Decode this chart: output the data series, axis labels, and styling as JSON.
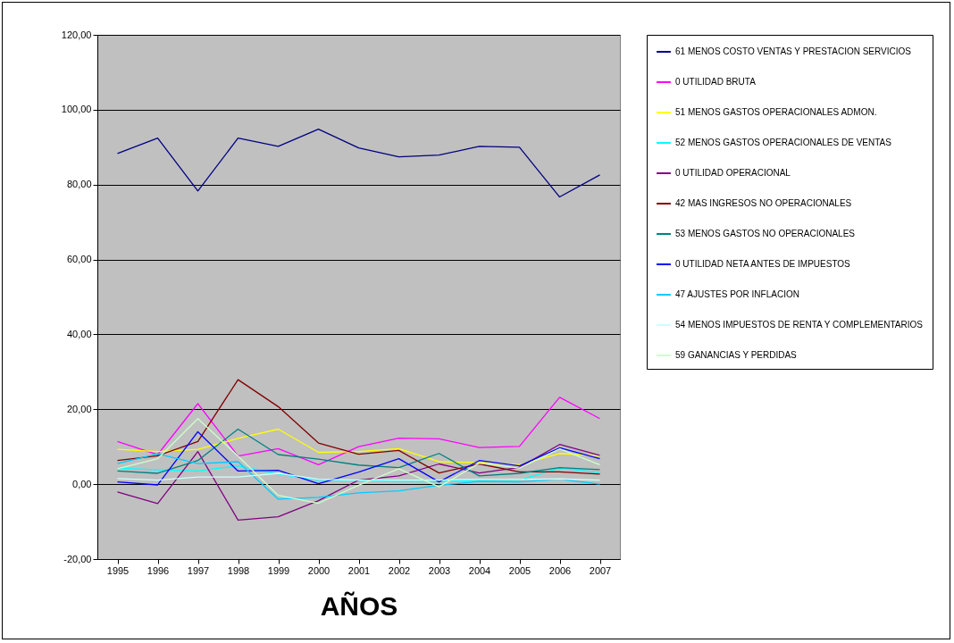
{
  "chart_data": {
    "type": "line",
    "xlabel": "AÑOS",
    "categories": [
      "1995",
      "1996",
      "1997",
      "1998",
      "1999",
      "2000",
      "2001",
      "2002",
      "2003",
      "2004",
      "2005",
      "2006",
      "2007"
    ],
    "ylim": [
      -20,
      120
    ],
    "yticks": [
      {
        "value": -20,
        "label": "-20,00"
      },
      {
        "value": 0,
        "label": "0,00"
      },
      {
        "value": 20,
        "label": "20,00"
      },
      {
        "value": 40,
        "label": "40,00"
      },
      {
        "value": 60,
        "label": "60,00"
      },
      {
        "value": 80,
        "label": "80,00"
      },
      {
        "value": 100,
        "label": "100,00"
      },
      {
        "value": 120,
        "label": "120,00"
      }
    ],
    "grid": "y",
    "legend": "right",
    "marker": "none",
    "series": [
      {
        "name": "61 MENOS COSTO VENTAS Y PRESTACION SERVICIOS",
        "color": "#000080",
        "values": [
          88.3,
          92.4,
          78.3,
          92.4,
          90.2,
          94.8,
          89.8,
          87.4,
          87.9,
          90.2,
          90.0,
          76.7,
          82.6
        ]
      },
      {
        "name": "0 UTILIDAD BRUTA",
        "color": "#ff00ff",
        "values": [
          11.4,
          7.9,
          21.5,
          7.5,
          9.5,
          5.2,
          10.0,
          12.3,
          12.1,
          9.8,
          10.1,
          23.2,
          17.5
        ]
      },
      {
        "name": "51 MENOS GASTOS OPERACIONALES ADMON.",
        "color": "#ffff00",
        "values": [
          9.3,
          8.7,
          9.3,
          12.2,
          14.7,
          8.5,
          8.7,
          9.5,
          6.0,
          5.8,
          5.2,
          8.2,
          7.5
        ]
      },
      {
        "name": "52 MENOS GASTOS OPERACIONALES DE VENTAS",
        "color": "#00ffff",
        "values": [
          4.3,
          3.8,
          3.5,
          4.9,
          2.7,
          1.1,
          1.0,
          0.7,
          0.7,
          1.0,
          1.1,
          4.3,
          3.1
        ]
      },
      {
        "name": "0 UTILIDAD OPERACIONAL",
        "color": "#800080",
        "values": [
          -2.1,
          -5.2,
          8.7,
          -9.6,
          -8.7,
          -4.4,
          1.1,
          2.2,
          5.4,
          3.0,
          4.5,
          10.6,
          7.7
        ]
      },
      {
        "name": "42 MAS INGRESOS NO OPERACIONALES",
        "color": "#800000",
        "values": [
          6.3,
          7.6,
          11.4,
          27.9,
          20.7,
          11.0,
          8.0,
          9.0,
          3.0,
          5.4,
          3.3,
          3.3,
          2.7
        ]
      },
      {
        "name": "53 MENOS GASTOS NO OPERACIONALES",
        "color": "#008080",
        "values": [
          3.5,
          2.9,
          6.3,
          14.7,
          7.9,
          6.7,
          5.1,
          4.4,
          8.2,
          2.2,
          2.9,
          4.4,
          3.9
        ]
      },
      {
        "name": "0 UTILIDAD NETA ANTES DE IMPUESTOS",
        "color": "#0000ff",
        "values": [
          0.6,
          -0.2,
          14.0,
          3.5,
          3.7,
          0.1,
          3.2,
          6.8,
          0.6,
          6.3,
          4.9,
          9.7,
          6.8
        ]
      },
      {
        "name": "47 AJUSTES POR INFLACION",
        "color": "#00ccff",
        "values": [
          5.5,
          8.1,
          5.5,
          6.0,
          -4.0,
          -3.5,
          -2.3,
          -1.8,
          -0.3,
          0.7,
          0.6,
          1.3,
          0.0
        ]
      },
      {
        "name": "54 MENOS IMPUESTOS DE RENTA Y COMPLEMENTARIOS",
        "color": "#ccffff",
        "values": [
          1.5,
          1.1,
          1.9,
          1.9,
          2.9,
          1.3,
          1.1,
          1.1,
          1.1,
          1.3,
          1.3,
          1.4,
          1.1
        ]
      },
      {
        "name": "59 GANANCIAS Y PERDIDAS",
        "color": "#ccffcc",
        "values": [
          4.1,
          6.8,
          17.5,
          7.5,
          -3.0,
          -5.1,
          -0.3,
          4.1,
          -0.7,
          5.6,
          4.3,
          9.4,
          5.2
        ]
      }
    ]
  }
}
